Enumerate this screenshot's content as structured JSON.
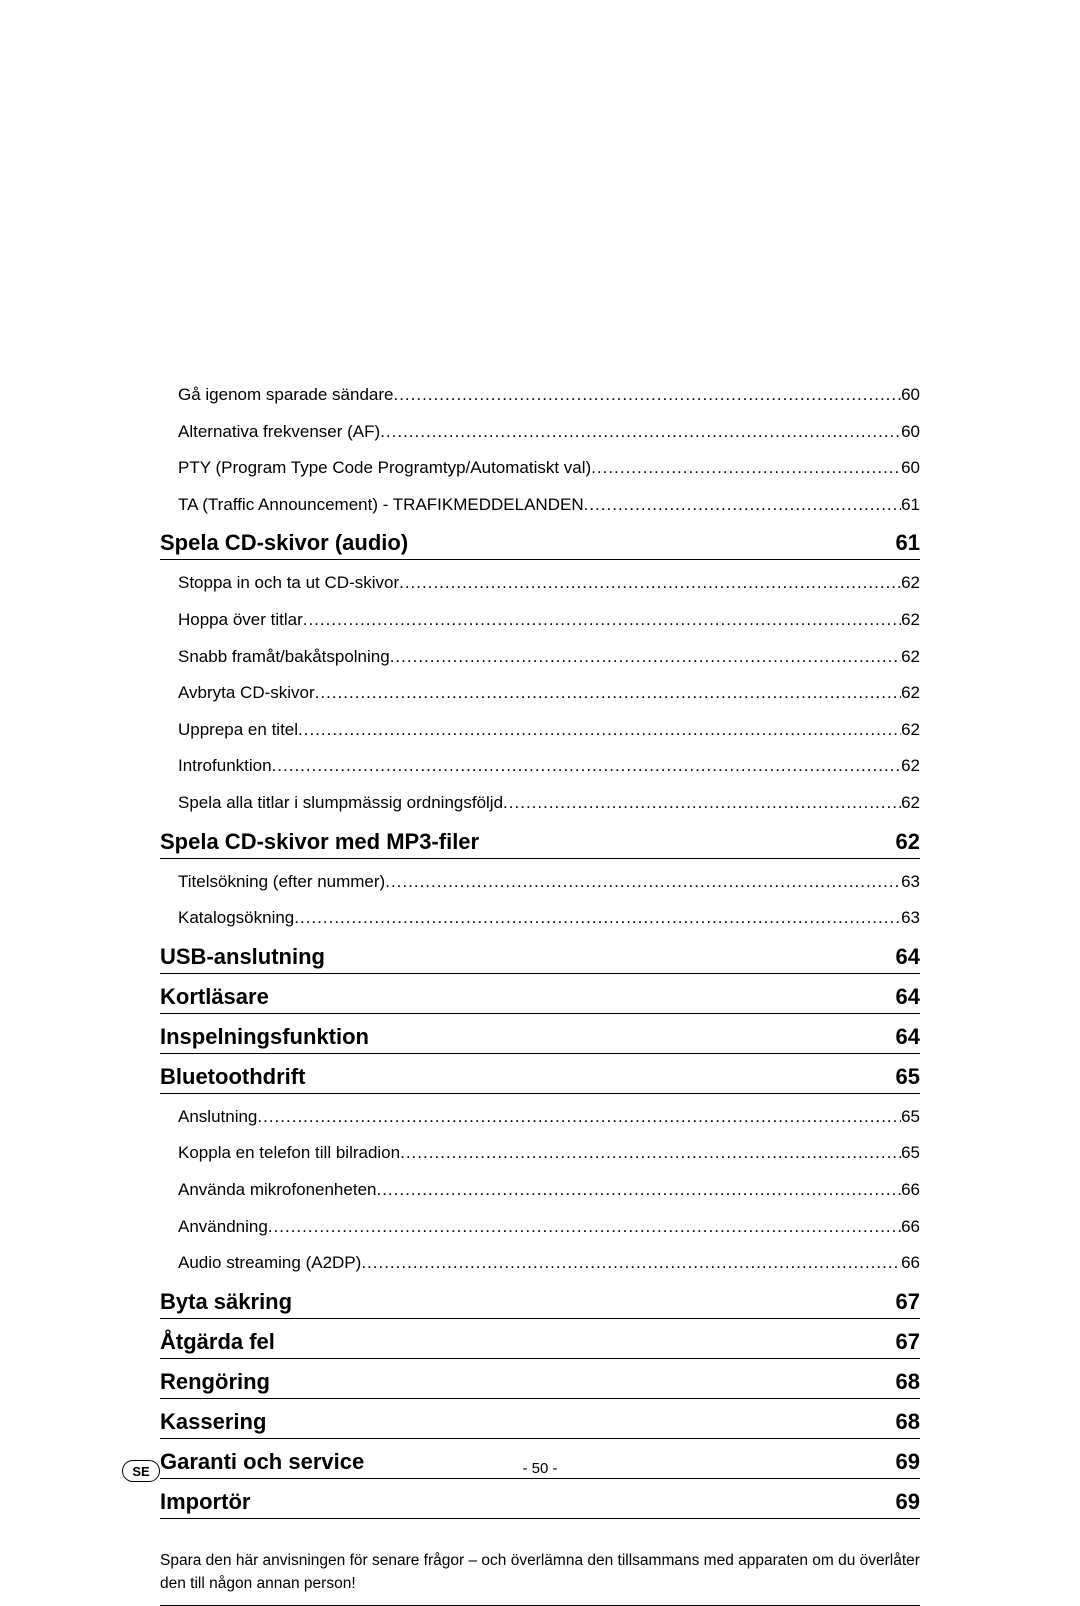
{
  "colors": {
    "text": "#000000",
    "background": "#ffffff"
  },
  "typography": {
    "body_fontsize": 17,
    "section_fontsize": 22,
    "note_fontsize": 15.5,
    "footer_fontsize": 15
  },
  "toc": {
    "intro_items": [
      {
        "title": "Gå igenom sparade sändare",
        "page": "60"
      },
      {
        "title": "Alternativa frekvenser (AF)",
        "page": "60"
      },
      {
        "title": "PTY (Program Type Code Programtyp/Automatiskt val)",
        "page": "60"
      },
      {
        "title": "TA (Traffic Announcement) - TRAFIKMEDDELANDEN",
        "page": "61"
      }
    ],
    "sections": [
      {
        "title": "Spela CD-skivor (audio)",
        "page": "61",
        "items": [
          {
            "title": "Stoppa in och ta ut CD-skivor",
            "page": "62"
          },
          {
            "title": "Hoppa över titlar",
            "page": "62"
          },
          {
            "title": "Snabb framåt/bakåtspolning",
            "page": "62"
          },
          {
            "title": "Avbryta CD-skivor",
            "page": "62"
          },
          {
            "title": "Upprepa en titel",
            "page": "62"
          },
          {
            "title": "Introfunktion",
            "page": "62"
          },
          {
            "title": "Spela alla titlar i slumpmässig ordningsföljd",
            "page": "62"
          }
        ]
      },
      {
        "title": "Spela CD-skivor med MP3-filer",
        "page": "62",
        "items": [
          {
            "title": "Titelsökning (efter nummer)",
            "page": "63"
          },
          {
            "title": "Katalogsökning",
            "page": "63"
          }
        ]
      },
      {
        "title": "USB-anslutning",
        "page": "64",
        "items": []
      },
      {
        "title": "Kortläsare",
        "page": "64",
        "items": []
      },
      {
        "title": "Inspelningsfunktion",
        "page": "64",
        "items": []
      },
      {
        "title": "Bluetoothdrift",
        "page": "65",
        "items": [
          {
            "title": "Anslutning",
            "page": "65"
          },
          {
            "title": "Koppla en telefon till bilradion",
            "page": "65"
          },
          {
            "title": "Använda mikrofonenheten",
            "page": "66"
          },
          {
            "title": "Användning",
            "page": "66"
          },
          {
            "title": "Audio streaming (A2DP)",
            "page": "66"
          }
        ]
      },
      {
        "title": "Byta säkring",
        "page": "67",
        "items": []
      },
      {
        "title": "Åtgärda fel",
        "page": "67",
        "items": []
      },
      {
        "title": "Rengöring",
        "page": "68",
        "items": []
      },
      {
        "title": "Kassering",
        "page": "68",
        "items": []
      },
      {
        "title": "Garanti och service",
        "page": "69",
        "items": []
      },
      {
        "title": "Importör",
        "page": "69",
        "items": []
      }
    ]
  },
  "note": "Spara den här anvisningen för senare frågor – och överlämna den tillsammans med apparaten om du överlåter den till någon annan person!",
  "footer": {
    "page_number": "- 50 -",
    "lang": "SE"
  }
}
